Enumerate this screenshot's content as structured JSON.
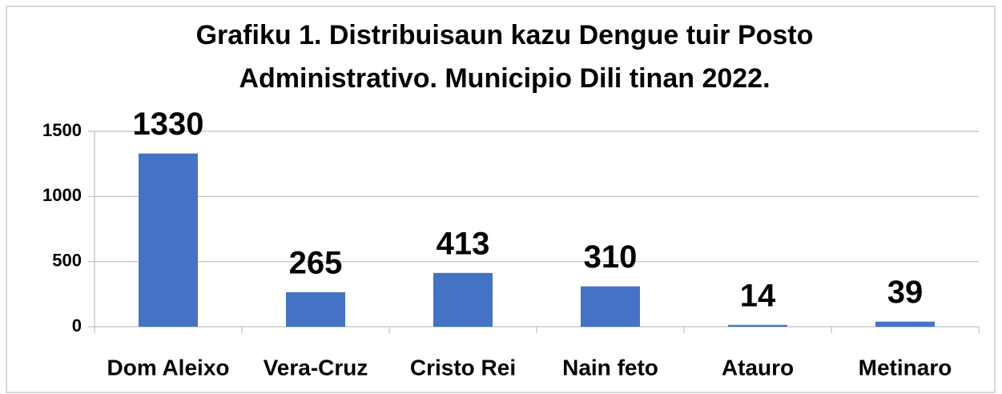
{
  "chart_data": {
    "type": "bar",
    "title": [
      "Grafiku 1. Distribuisaun kazu Dengue tuir Posto",
      "Administrativo. Municipio Dili tinan 2022."
    ],
    "categories": [
      "Dom Aleixo",
      "Vera-Cruz",
      "Cristo Rei",
      "Nain feto",
      "Atauro",
      "Metinaro"
    ],
    "values": [
      1330,
      265,
      413,
      310,
      14,
      39
    ],
    "color": "#4472c4",
    "ylim": [
      0,
      1500
    ],
    "yticks": [
      0,
      500,
      1000,
      1500
    ],
    "grid": true
  }
}
